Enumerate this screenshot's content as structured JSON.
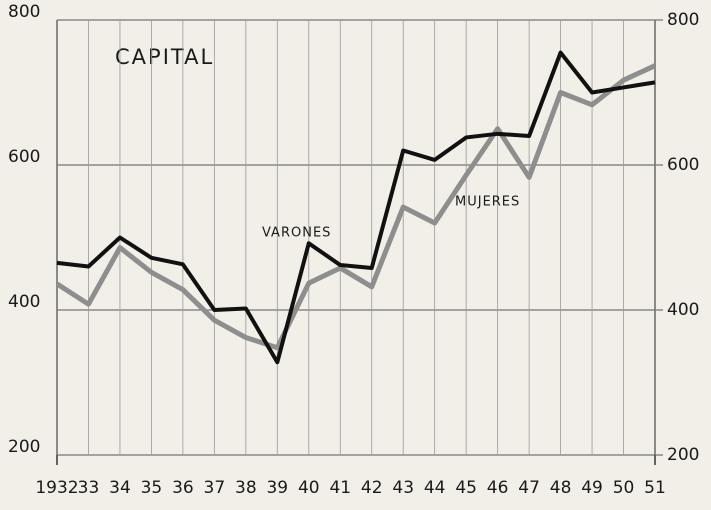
{
  "chart_data": {
    "type": "line",
    "title": "CAPITAL",
    "categories": [
      "1932",
      "33",
      "34",
      "35",
      "36",
      "37",
      "38",
      "39",
      "40",
      "41",
      "42",
      "43",
      "44",
      "45",
      "46",
      "47",
      "48",
      "49",
      "50",
      "51"
    ],
    "series": [
      {
        "name": "VARONES",
        "color": "#111111",
        "values": [
          465,
          460,
          500,
          472,
          463,
          400,
          402,
          328,
          492,
          462,
          458,
          620,
          607,
          638,
          643,
          640,
          755,
          700,
          707,
          714
        ]
      },
      {
        "name": "MUJERES",
        "color": "#8e8e8e",
        "values": [
          436,
          408,
          486,
          452,
          428,
          386,
          362,
          348,
          437,
          458,
          432,
          542,
          520,
          586,
          650,
          583,
          700,
          683,
          717,
          737
        ]
      }
    ],
    "ylim": [
      200,
      800
    ],
    "yticks": [
      200,
      400,
      600,
      800
    ],
    "y2lim": [
      200,
      800
    ],
    "y2ticks": [
      200,
      400,
      600,
      800
    ],
    "grid": true
  }
}
